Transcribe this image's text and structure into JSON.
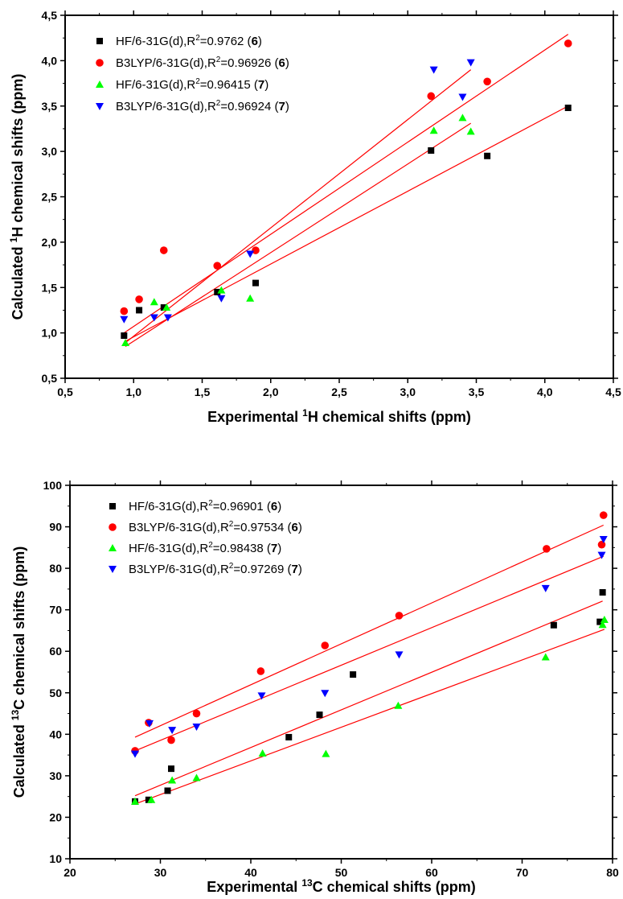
{
  "chart_data": [
    {
      "type": "scatter",
      "xlabel": "Experimental ¹H chemical shifts (ppm)",
      "ylabel": "Calculated ¹H chemical shifts (ppm)",
      "xlim": [
        0.5,
        4.5
      ],
      "ylim": [
        0.5,
        4.5
      ],
      "x_ticks": [
        "0,5",
        "1,0",
        "1,5",
        "2,0",
        "2,5",
        "3,0",
        "3,5",
        "4,0",
        "4,5"
      ],
      "y_ticks": [
        "0,5",
        "1,0",
        "1,5",
        "2,0",
        "2,5",
        "3,0",
        "3,5",
        "4,0",
        "4,5"
      ],
      "legend_position": "top-left",
      "series": [
        {
          "name": "HF/6-31G(d),R²=0.9762 (6)",
          "legend_parts": {
            "method": "HF/6-31G(d),R",
            "sup": "2",
            "value": "=0.9762 (",
            "compound": "6",
            "close": ")"
          },
          "marker": "square",
          "color": "#000000",
          "points": [
            [
              0.93,
              0.97
            ],
            [
              1.04,
              1.25
            ],
            [
              1.22,
              1.28
            ],
            [
              1.61,
              1.45
            ],
            [
              1.89,
              1.55
            ],
            [
              3.17,
              3.01
            ],
            [
              3.58,
              2.95
            ],
            [
              4.17,
              3.48
            ]
          ],
          "fit": [
            [
              0.93,
              0.9
            ],
            [
              4.17,
              3.5
            ]
          ]
        },
        {
          "name": "B3LYP/6-31G(d),R²=0.96926 (6)",
          "legend_parts": {
            "method": "B3LYP/6-31G(d),R",
            "sup": "2",
            "value": "=0.96926 (",
            "compound": "6",
            "close": ")"
          },
          "marker": "circle",
          "color": "#ff0000",
          "points": [
            [
              0.93,
              1.24
            ],
            [
              1.04,
              1.37
            ],
            [
              1.22,
              1.91
            ],
            [
              1.61,
              1.74
            ],
            [
              1.89,
              1.91
            ],
            [
              3.17,
              3.61
            ],
            [
              3.58,
              3.77
            ],
            [
              4.17,
              4.19
            ]
          ],
          "fit": [
            [
              0.93,
              1.0
            ],
            [
              4.17,
              4.29
            ]
          ]
        },
        {
          "name": "HF/6-31G(d),R²=0.96415 (7)",
          "legend_parts": {
            "method": "HF/6-31G(d),R",
            "sup": "2",
            "value": "=0.96415 (",
            "compound": "7",
            "close": ")"
          },
          "marker": "triangle-up",
          "color": "#00ff00",
          "points": [
            [
              0.94,
              0.89
            ],
            [
              1.15,
              1.34
            ],
            [
              1.24,
              1.28
            ],
            [
              1.64,
              1.47
            ],
            [
              1.85,
              1.38
            ],
            [
              3.19,
              3.23
            ],
            [
              3.4,
              3.37
            ],
            [
              3.46,
              3.22
            ]
          ],
          "fit": [
            [
              0.94,
              0.85
            ],
            [
              3.46,
              3.31
            ]
          ]
        },
        {
          "name": "B3LYP/6-31G(d),R²=0.96924 (7)",
          "legend_parts": {
            "method": "B3LYP/6-31G(d),R",
            "sup": "2",
            "value": "=0.96924 (",
            "compound": "7",
            "close": ")"
          },
          "marker": "triangle-down",
          "color": "#0000ff",
          "points": [
            [
              0.93,
              1.15
            ],
            [
              1.15,
              1.17
            ],
            [
              1.25,
              1.17
            ],
            [
              1.64,
              1.38
            ],
            [
              1.85,
              1.87
            ],
            [
              3.19,
              3.9
            ],
            [
              3.4,
              3.6
            ],
            [
              3.46,
              3.98
            ]
          ],
          "fit": [
            [
              0.93,
              0.88
            ],
            [
              3.46,
              3.9
            ]
          ]
        }
      ]
    },
    {
      "type": "scatter",
      "xlabel": "Experimental ¹³C chemical shifts (ppm)",
      "ylabel": "Calculated ¹³C chemical shifts (ppm)",
      "xlim": [
        20,
        80
      ],
      "ylim": [
        10,
        100
      ],
      "x_ticks": [
        "20",
        "30",
        "40",
        "50",
        "60",
        "70",
        "80"
      ],
      "y_ticks": [
        "10",
        "20",
        "30",
        "40",
        "50",
        "60",
        "70",
        "80",
        "90",
        "100"
      ],
      "legend_position": "top-left",
      "series": [
        {
          "name": "HF/6-31G(d),R²=0.96901 (6)",
          "legend_parts": {
            "method": "HF/6-31G(d),R",
            "sup": "2",
            "value": "=0.96901 (",
            "compound": "6",
            "close": ")"
          },
          "marker": "square",
          "color": "#000000",
          "points": [
            [
              27.2,
              23.8
            ],
            [
              28.7,
              24.2
            ],
            [
              30.8,
              26.4
            ],
            [
              31.2,
              31.7
            ],
            [
              44.2,
              39.3
            ],
            [
              47.6,
              44.7
            ],
            [
              51.3,
              54.4
            ],
            [
              73.5,
              66.3
            ],
            [
              78.6,
              67.1
            ],
            [
              78.9,
              74.2
            ]
          ],
          "fit": [
            [
              27.2,
              25.2
            ],
            [
              78.9,
              72.1
            ]
          ]
        },
        {
          "name": "B3LYP/6-31G(d),R²=0.97534 (6)",
          "legend_parts": {
            "method": "B3LYP/6-31G(d),R",
            "sup": "2",
            "value": "=0.97534 (",
            "compound": "6",
            "close": ")"
          },
          "marker": "circle",
          "color": "#ff0000",
          "points": [
            [
              27.2,
              36.0
            ],
            [
              28.7,
              42.8
            ],
            [
              31.2,
              38.6
            ],
            [
              34.0,
              45.0
            ],
            [
              41.1,
              55.2
            ],
            [
              48.2,
              61.4
            ],
            [
              56.4,
              68.6
            ],
            [
              72.7,
              84.7
            ],
            [
              78.8,
              85.7
            ],
            [
              79.0,
              92.8
            ]
          ],
          "fit": [
            [
              27.2,
              39.3
            ],
            [
              79.0,
              90.4
            ]
          ]
        },
        {
          "name": "HF/6-31G(d),R²=0.98438 (7)",
          "legend_parts": {
            "method": "HF/6-31G(d),R",
            "sup": "2",
            "value": "=0.98438 (",
            "compound": "7",
            "close": ")"
          },
          "marker": "triangle-up",
          "color": "#00ff00",
          "points": [
            [
              27.2,
              23.8
            ],
            [
              29.0,
              24.2
            ],
            [
              31.3,
              28.9
            ],
            [
              34.0,
              29.5
            ],
            [
              41.3,
              35.4
            ],
            [
              48.3,
              35.3
            ],
            [
              56.3,
              46.9
            ],
            [
              72.6,
              58.6
            ],
            [
              78.9,
              66.4
            ],
            [
              79.1,
              67.6
            ]
          ],
          "fit": [
            [
              27.2,
              23.2
            ],
            [
              79.1,
              65.3
            ]
          ]
        },
        {
          "name": "B3LYP/6-31G(d),R²=0.97269 (7)",
          "legend_parts": {
            "method": "B3LYP/6-31G(d),R",
            "sup": "2",
            "value": "=0.97269 (",
            "compound": "7",
            "close": ")"
          },
          "marker": "triangle-down",
          "color": "#0000ff",
          "points": [
            [
              27.2,
              35.3
            ],
            [
              28.8,
              42.6
            ],
            [
              31.3,
              41.0
            ],
            [
              34.0,
              41.8
            ],
            [
              41.2,
              49.3
            ],
            [
              48.2,
              49.9
            ],
            [
              56.4,
              59.2
            ],
            [
              72.6,
              75.2
            ],
            [
              78.8,
              83.2
            ],
            [
              79.0,
              87.0
            ]
          ],
          "fit": [
            [
              27.2,
              36.0
            ],
            [
              79.0,
              82.9
            ]
          ]
        }
      ]
    }
  ]
}
